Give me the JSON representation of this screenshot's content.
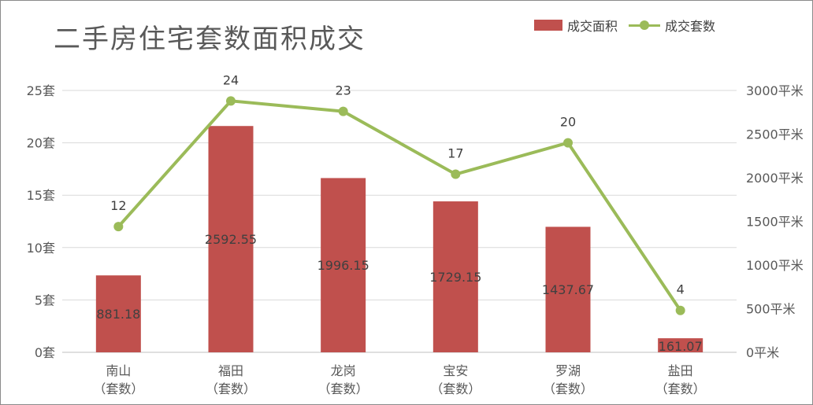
{
  "chart_data": {
    "type": "bar+line",
    "title": "二手房住宅套数面积成交",
    "categories": [
      [
        "南山",
        "（套数）"
      ],
      [
        "福田",
        "（套数）"
      ],
      [
        "龙岗",
        "（套数）"
      ],
      [
        "宝安",
        "（套数）"
      ],
      [
        "罗湖",
        "（套数）"
      ],
      [
        "盐田",
        "（套数）"
      ]
    ],
    "series": [
      {
        "name": "成交面积",
        "kind": "bar",
        "axis": "right",
        "color": "#c0504d",
        "values": [
          881.18,
          2592.55,
          1996.15,
          1729.15,
          1437.67,
          161.07
        ],
        "labels": [
          "881.18",
          "2592.55",
          "1996.15",
          "1729.15",
          "1437.67",
          "161.07"
        ]
      },
      {
        "name": "成交套数",
        "kind": "line",
        "axis": "left",
        "color": "#9bbb59",
        "values": [
          12,
          24,
          23,
          17,
          20,
          4
        ],
        "labels": [
          "12",
          "24",
          "23",
          "17",
          "20",
          "4"
        ]
      }
    ],
    "y_left": {
      "min": 0,
      "max": 25,
      "ticks": [
        0,
        5,
        10,
        15,
        20,
        25
      ],
      "tick_labels": [
        "0套",
        "5套",
        "10套",
        "15套",
        "20套",
        "25套"
      ]
    },
    "y_right": {
      "min": 0,
      "max": 3000,
      "ticks": [
        0,
        500,
        1000,
        1500,
        2000,
        2500,
        3000
      ],
      "tick_labels": [
        "0平米",
        "500平米",
        "1000平米",
        "1500平米",
        "2000平米",
        "2500平米",
        "3000平米"
      ]
    },
    "grid": true,
    "legend_position": "top-right"
  }
}
